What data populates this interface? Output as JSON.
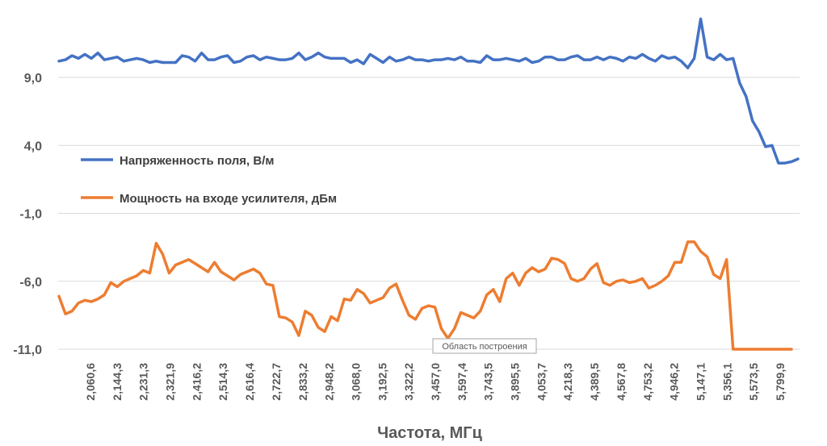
{
  "chart_data": {
    "type": "line",
    "title": "",
    "xlabel": "Частота, МГц",
    "ylabel": "",
    "ylim": [
      -11,
      14
    ],
    "yticks": [
      9.0,
      4.0,
      -1.0,
      -6.0,
      -11.0
    ],
    "ytick_labels": [
      "9,0",
      "4,0",
      "-1,0",
      "-6,0",
      "-11,0"
    ],
    "grid": true,
    "legend_position": "inside-left",
    "x_tick_labels": [
      "2,060,6",
      "2,144,3",
      "2,231,3",
      "2,321,9",
      "2,416,2",
      "2,514,3",
      "2,616,4",
      "2,722,7",
      "2,833,2",
      "2,948,2",
      "3,068,0",
      "3,192,5",
      "3,322,2",
      "3,457,0",
      "3,597,4",
      "3,743,5",
      "3,895,5",
      "4,053,7",
      "4,218,3",
      "4,389,5",
      "4,567,8",
      "4,753,2",
      "4,946,2",
      "5,147,1",
      "5,356,1",
      "5,573,5",
      "5,799,9"
    ],
    "series": [
      {
        "name": "Напряженность поля, В/м",
        "color": "#4472c4",
        "values": [
          10.2,
          10.3,
          10.6,
          10.4,
          10.7,
          10.4,
          10.8,
          10.3,
          10.4,
          10.5,
          10.2,
          10.3,
          10.4,
          10.3,
          10.1,
          10.2,
          10.1,
          10.1,
          10.1,
          10.6,
          10.5,
          10.2,
          10.8,
          10.3,
          10.3,
          10.5,
          10.6,
          10.1,
          10.2,
          10.5,
          10.6,
          10.3,
          10.5,
          10.4,
          10.3,
          10.3,
          10.4,
          10.8,
          10.3,
          10.5,
          10.8,
          10.5,
          10.4,
          10.4,
          10.4,
          10.1,
          10.3,
          10.0,
          10.7,
          10.4,
          10.1,
          10.5,
          10.2,
          10.3,
          10.5,
          10.3,
          10.3,
          10.2,
          10.3,
          10.3,
          10.4,
          10.3,
          10.5,
          10.2,
          10.2,
          10.1,
          10.6,
          10.3,
          10.3,
          10.4,
          10.3,
          10.2,
          10.4,
          10.1,
          10.2,
          10.5,
          10.5,
          10.3,
          10.3,
          10.5,
          10.6,
          10.3,
          10.3,
          10.5,
          10.3,
          10.5,
          10.4,
          10.2,
          10.5,
          10.4,
          10.7,
          10.4,
          10.2,
          10.6,
          10.4,
          10.5,
          10.2,
          9.7,
          10.4,
          13.3,
          10.5,
          10.3,
          10.7,
          10.3,
          10.4,
          8.6,
          7.6,
          5.8,
          5.0,
          3.9,
          4.0,
          2.7,
          2.7,
          2.8,
          3.0
        ]
      },
      {
        "name": "Мощность на входе усилителя, дБм",
        "color": "#ed7d31",
        "values": [
          -7.1,
          -8.4,
          -8.2,
          -7.6,
          -7.4,
          -7.5,
          -7.3,
          -7.0,
          -6.1,
          -6.4,
          -6.0,
          -5.8,
          -5.6,
          -5.2,
          -5.4,
          -3.2,
          -4.0,
          -5.4,
          -4.8,
          -4.6,
          -4.4,
          -4.7,
          -5.0,
          -5.3,
          -4.6,
          -5.3,
          -5.6,
          -5.9,
          -5.5,
          -5.3,
          -5.1,
          -5.4,
          -6.2,
          -6.3,
          -8.6,
          -8.7,
          -9.0,
          -10.0,
          -8.2,
          -8.5,
          -9.4,
          -9.7,
          -8.6,
          -8.9,
          -7.3,
          -7.4,
          -6.6,
          -6.9,
          -7.6,
          -7.4,
          -7.2,
          -6.5,
          -6.2,
          -7.4,
          -8.5,
          -8.8,
          -8.0,
          -7.8,
          -7.9,
          -9.5,
          -10.2,
          -9.5,
          -8.3,
          -8.5,
          -8.7,
          -8.2,
          -7.0,
          -6.6,
          -7.5,
          -5.8,
          -5.4,
          -6.3,
          -5.4,
          -5.0,
          -5.3,
          -5.1,
          -4.3,
          -4.4,
          -4.7,
          -5.8,
          -6.0,
          -5.8,
          -5.1,
          -4.7,
          -6.1,
          -6.3,
          -6.0,
          -5.9,
          -6.1,
          -6.0,
          -5.8,
          -6.5,
          -6.3,
          -6.0,
          -5.6,
          -4.6,
          -4.6,
          -3.1,
          -3.1,
          -3.8,
          -4.2,
          -5.5,
          -5.8,
          -4.4,
          -11.0,
          -11.0,
          -11.0,
          -11.0,
          -11.0,
          -11.0,
          -11.0,
          -11.0,
          -11.0,
          -11.0
        ]
      }
    ]
  },
  "tooltip": {
    "text": "Область построения"
  }
}
